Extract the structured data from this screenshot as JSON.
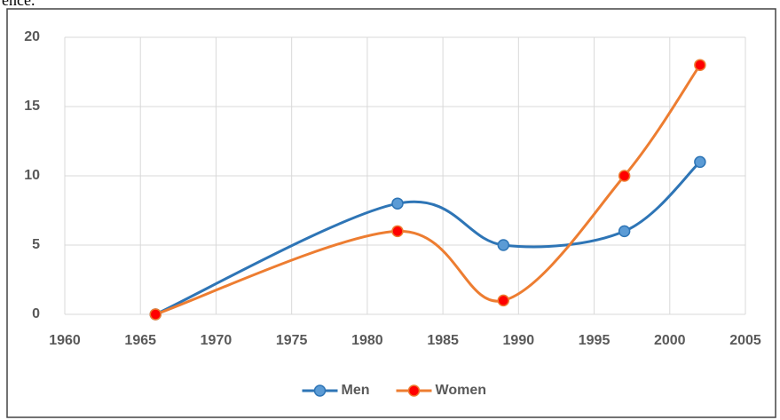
{
  "page_fragment": "ence.",
  "chart_data": {
    "type": "scatter",
    "x": [
      1966,
      1982,
      1989,
      1997,
      2002
    ],
    "series": [
      {
        "name": "Men",
        "color": "#2e75b6",
        "marker_color": "#5b9bd5",
        "values": [
          0,
          8,
          5,
          6,
          11
        ]
      },
      {
        "name": "Women",
        "color": "#ed7d31",
        "marker_color": "#ff0000",
        "values": [
          0,
          6,
          1,
          10,
          18
        ]
      }
    ],
    "xlim": [
      1960,
      2005
    ],
    "xticks": [
      1960,
      1965,
      1970,
      1975,
      1980,
      1985,
      1990,
      1995,
      2000,
      2005
    ],
    "ylim": [
      0,
      20
    ],
    "yticks": [
      0,
      5,
      10,
      15,
      20
    ],
    "grid": true,
    "smooth": true,
    "legend": "bottom"
  }
}
